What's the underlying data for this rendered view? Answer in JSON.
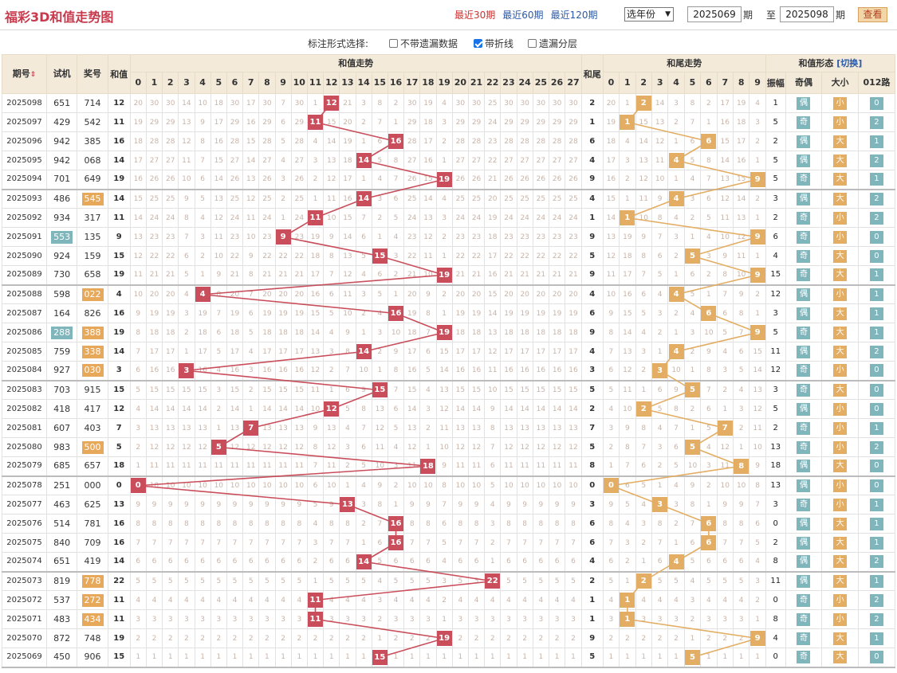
{
  "title": "福彩3D和值走势图",
  "period_links": [
    "最近30期",
    "最近60期",
    "最近120期"
  ],
  "year_select": "选年份",
  "range": {
    "from": "2025069",
    "to": "2025098",
    "qi": "期",
    "zhi": "至"
  },
  "query_btn": "查看",
  "options": {
    "label": "标注形式选择:",
    "items": [
      "不带遗漏数据",
      "带折线",
      "遗漏分层"
    ],
    "checked": [
      false,
      true,
      false
    ]
  },
  "headers": {
    "period": "期号",
    "trial": "试机",
    "draw": "奖号",
    "sum": "和值",
    "sum_trend": "和值走势",
    "tail": "和尾",
    "tail_trend": "和尾走势",
    "form": "和值形态",
    "switch": "[切换]",
    "amp": "振幅",
    "oe": "奇偶",
    "bs": "大小",
    "road": "012路"
  },
  "sum_cols": [
    "0",
    "1",
    "2",
    "3",
    "4",
    "5",
    "6",
    "7",
    "8",
    "9",
    "10",
    "11",
    "12",
    "13",
    "14",
    "15",
    "16",
    "17",
    "18",
    "19",
    "20",
    "21",
    "22",
    "23",
    "24",
    "25",
    "26",
    "27"
  ],
  "tail_cols": [
    "0",
    "1",
    "2",
    "3",
    "4",
    "5",
    "6",
    "7",
    "8",
    "9"
  ],
  "labels": {
    "odd": "奇",
    "even": "偶",
    "big": "大",
    "small": "小"
  },
  "colors": {
    "sum_ball": "#c94d5a",
    "tail_ball": "#e3ad63",
    "trial_hl": "#7fb6bc",
    "draw_hl": "#e8a85a"
  },
  "rows": [
    {
      "p": "2025098",
      "t": "651",
      "d": "714",
      "s": 12,
      "amp": 1,
      "oe": "偶",
      "bs": "小",
      "r": 0,
      "th": false,
      "dh": false
    },
    {
      "p": "2025097",
      "t": "429",
      "d": "542",
      "s": 11,
      "amp": 5,
      "oe": "奇",
      "bs": "小",
      "r": 2,
      "th": false,
      "dh": false
    },
    {
      "p": "2025096",
      "t": "942",
      "d": "385",
      "s": 16,
      "amp": 2,
      "oe": "偶",
      "bs": "大",
      "r": 1,
      "th": false,
      "dh": false
    },
    {
      "p": "2025095",
      "t": "942",
      "d": "068",
      "s": 14,
      "amp": 5,
      "oe": "偶",
      "bs": "大",
      "r": 2,
      "th": false,
      "dh": false
    },
    {
      "p": "2025094",
      "t": "701",
      "d": "649",
      "s": 19,
      "amp": 5,
      "oe": "奇",
      "bs": "大",
      "r": 1,
      "th": false,
      "dh": false
    },
    {
      "p": "2025093",
      "t": "486",
      "d": "545",
      "s": 14,
      "amp": 3,
      "oe": "偶",
      "bs": "大",
      "r": 2,
      "th": false,
      "dh": true
    },
    {
      "p": "2025092",
      "t": "934",
      "d": "317",
      "s": 11,
      "amp": 2,
      "oe": "奇",
      "bs": "小",
      "r": 2,
      "th": false,
      "dh": false
    },
    {
      "p": "2025091",
      "t": "553",
      "d": "135",
      "s": 9,
      "amp": 6,
      "oe": "奇",
      "bs": "小",
      "r": 0,
      "th": true,
      "dh": false
    },
    {
      "p": "2025090",
      "t": "924",
      "d": "159",
      "s": 15,
      "amp": 4,
      "oe": "奇",
      "bs": "大",
      "r": 0,
      "th": false,
      "dh": false
    },
    {
      "p": "2025089",
      "t": "730",
      "d": "658",
      "s": 19,
      "amp": 15,
      "oe": "奇",
      "bs": "大",
      "r": 1,
      "th": false,
      "dh": false
    },
    {
      "p": "2025088",
      "t": "598",
      "d": "022",
      "s": 4,
      "amp": 12,
      "oe": "偶",
      "bs": "小",
      "r": 1,
      "th": false,
      "dh": true
    },
    {
      "p": "2025087",
      "t": "164",
      "d": "826",
      "s": 16,
      "amp": 3,
      "oe": "偶",
      "bs": "大",
      "r": 1,
      "th": false,
      "dh": false
    },
    {
      "p": "2025086",
      "t": "288",
      "d": "388",
      "s": 19,
      "amp": 5,
      "oe": "奇",
      "bs": "大",
      "r": 1,
      "th": true,
      "dh": true
    },
    {
      "p": "2025085",
      "t": "759",
      "d": "338",
      "s": 14,
      "amp": 11,
      "oe": "偶",
      "bs": "大",
      "r": 2,
      "th": false,
      "dh": true
    },
    {
      "p": "2025084",
      "t": "927",
      "d": "030",
      "s": 3,
      "amp": 12,
      "oe": "奇",
      "bs": "小",
      "r": 0,
      "th": false,
      "dh": true
    },
    {
      "p": "2025083",
      "t": "703",
      "d": "915",
      "s": 15,
      "amp": 3,
      "oe": "奇",
      "bs": "大",
      "r": 0,
      "th": false,
      "dh": false
    },
    {
      "p": "2025082",
      "t": "418",
      "d": "417",
      "s": 12,
      "amp": 5,
      "oe": "偶",
      "bs": "小",
      "r": 0,
      "th": false,
      "dh": false
    },
    {
      "p": "2025081",
      "t": "607",
      "d": "403",
      "s": 7,
      "amp": 2,
      "oe": "奇",
      "bs": "小",
      "r": 1,
      "th": false,
      "dh": false
    },
    {
      "p": "2025080",
      "t": "983",
      "d": "500",
      "s": 5,
      "amp": 13,
      "oe": "奇",
      "bs": "小",
      "r": 2,
      "th": false,
      "dh": true
    },
    {
      "p": "2025079",
      "t": "685",
      "d": "657",
      "s": 18,
      "amp": 18,
      "oe": "偶",
      "bs": "大",
      "r": 0,
      "th": false,
      "dh": false
    },
    {
      "p": "2025078",
      "t": "251",
      "d": "000",
      "s": 0,
      "amp": 13,
      "oe": "偶",
      "bs": "小",
      "r": 0,
      "th": false,
      "dh": false
    },
    {
      "p": "2025077",
      "t": "463",
      "d": "625",
      "s": 13,
      "amp": 3,
      "oe": "奇",
      "bs": "小",
      "r": 1,
      "th": false,
      "dh": false
    },
    {
      "p": "2025076",
      "t": "514",
      "d": "781",
      "s": 16,
      "amp": 0,
      "oe": "偶",
      "bs": "大",
      "r": 1,
      "th": false,
      "dh": false
    },
    {
      "p": "2025075",
      "t": "840",
      "d": "709",
      "s": 16,
      "amp": 2,
      "oe": "偶",
      "bs": "大",
      "r": 1,
      "th": false,
      "dh": false
    },
    {
      "p": "2025074",
      "t": "651",
      "d": "419",
      "s": 14,
      "amp": 8,
      "oe": "偶",
      "bs": "大",
      "r": 2,
      "th": false,
      "dh": false
    },
    {
      "p": "2025073",
      "t": "819",
      "d": "778",
      "s": 22,
      "amp": 11,
      "oe": "偶",
      "bs": "大",
      "r": 1,
      "th": false,
      "dh": true
    },
    {
      "p": "2025072",
      "t": "537",
      "d": "272",
      "s": 11,
      "amp": 0,
      "oe": "奇",
      "bs": "小",
      "r": 2,
      "th": false,
      "dh": true
    },
    {
      "p": "2025071",
      "t": "483",
      "d": "434",
      "s": 11,
      "amp": 8,
      "oe": "奇",
      "bs": "小",
      "r": 2,
      "th": false,
      "dh": true
    },
    {
      "p": "2025070",
      "t": "872",
      "d": "748",
      "s": 19,
      "amp": 4,
      "oe": "奇",
      "bs": "大",
      "r": 1,
      "th": false,
      "dh": false
    },
    {
      "p": "2025069",
      "t": "450",
      "d": "906",
      "s": 15,
      "amp": 0,
      "oe": "奇",
      "bs": "大",
      "r": 0,
      "th": false,
      "dh": false
    }
  ]
}
